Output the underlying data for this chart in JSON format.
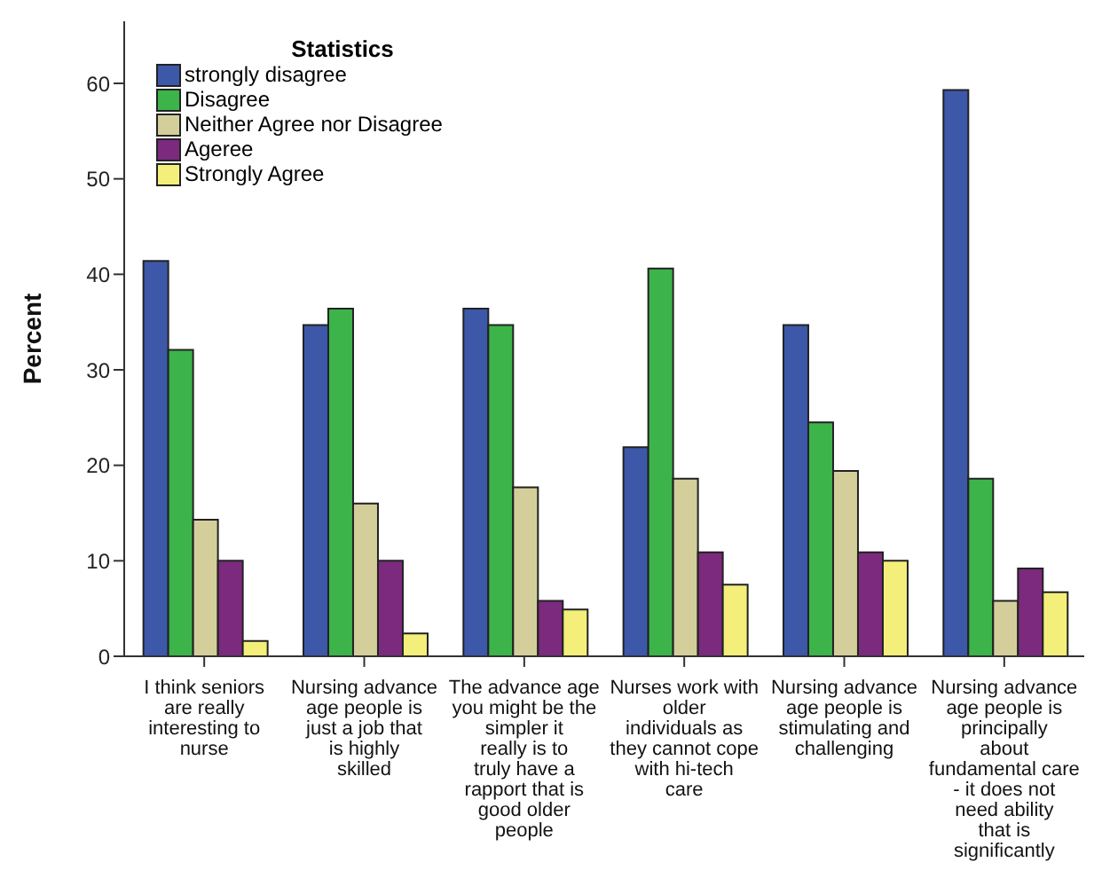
{
  "chart_data": {
    "type": "bar",
    "ylabel": "Percent",
    "legend_title": "Statistics",
    "legend": "top left",
    "grid": false,
    "categories": [
      "I think seniors are really interesting to nurse",
      "Nursing advance age people is just a job that is highly skilled",
      "The advance age you might be the simpler it really is to truly have a rapport that is good older people",
      "Nurses work with older individuals as they cannot cope with hi-tech care",
      "Nursing advance age people is stimulating and challenging",
      "Nursing advance age people is principally about fundamental care - it does not need ability that is significantly"
    ],
    "series": [
      {
        "name": "strongly disagree",
        "color": "#3d58a8",
        "values": [
          41.4,
          34.7,
          36.4,
          21.9,
          34.7,
          59.3
        ]
      },
      {
        "name": "Disagree",
        "color": "#3cb44a",
        "values": [
          32.1,
          36.4,
          34.7,
          40.6,
          24.5,
          18.6
        ]
      },
      {
        "name": "Neither Agree nor Disagree",
        "color": "#d4cf9a",
        "values": [
          14.3,
          16.0,
          17.7,
          18.6,
          19.4,
          5.8
        ]
      },
      {
        "name": "Ageree",
        "color": "#7b2a7e",
        "values": [
          10.0,
          10.0,
          5.8,
          10.9,
          10.9,
          9.2
        ]
      },
      {
        "name": "Strongly Agree",
        "color": "#f4ef7a",
        "values": [
          1.6,
          2.4,
          4.9,
          7.5,
          10.0,
          6.7
        ]
      }
    ],
    "ylim": [
      0,
      66.5
    ],
    "yticks": [
      0,
      10,
      20,
      30,
      40,
      50,
      60
    ]
  }
}
